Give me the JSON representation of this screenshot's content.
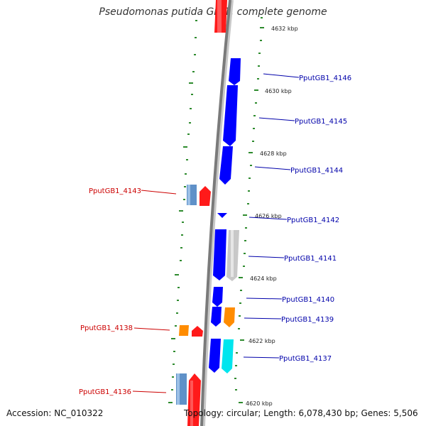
{
  "title": "Pseudomonas putida GB-1, complete genome",
  "accession": "Accession: NC_010322",
  "summary": "Topology: circular; Length: 6,078,430 bp; Genes: 5,506",
  "colors": {
    "forward_gene": "#ff0000",
    "forward_gene_dark": "#c00000",
    "reverse_gene": "#0000ff",
    "reverse_gene_dark": "#0000a0",
    "steelblue_gene": "#5f91c8",
    "orange_gene": "#ff8c00",
    "cyan_gene": "#00e5ee",
    "gray_gene": "#c8c8c8",
    "backbone": "#808080",
    "tick": "#2e8b2e",
    "label_forward": "#cc0000",
    "label_reverse": "#0000aa",
    "scale_text": "#222222"
  },
  "scale_labels": [
    "4632 kbp",
    "4630 kbp",
    "4628 kbp",
    "4626 kbp",
    "4624 kbp",
    "4622 kbp",
    "4620 kbp"
  ],
  "gene_labels_right": [
    "PputGB1_4146",
    "PputGB1_4145",
    "PputGB1_4144",
    "PputGB1_4142",
    "PputGB1_4141",
    "PputGB1_4140",
    "PputGB1_4139",
    "PputGB1_4137"
  ],
  "gene_labels_left": [
    "PputGB1_4143",
    "PputGB1_4138",
    "PputGB1_4136"
  ]
}
